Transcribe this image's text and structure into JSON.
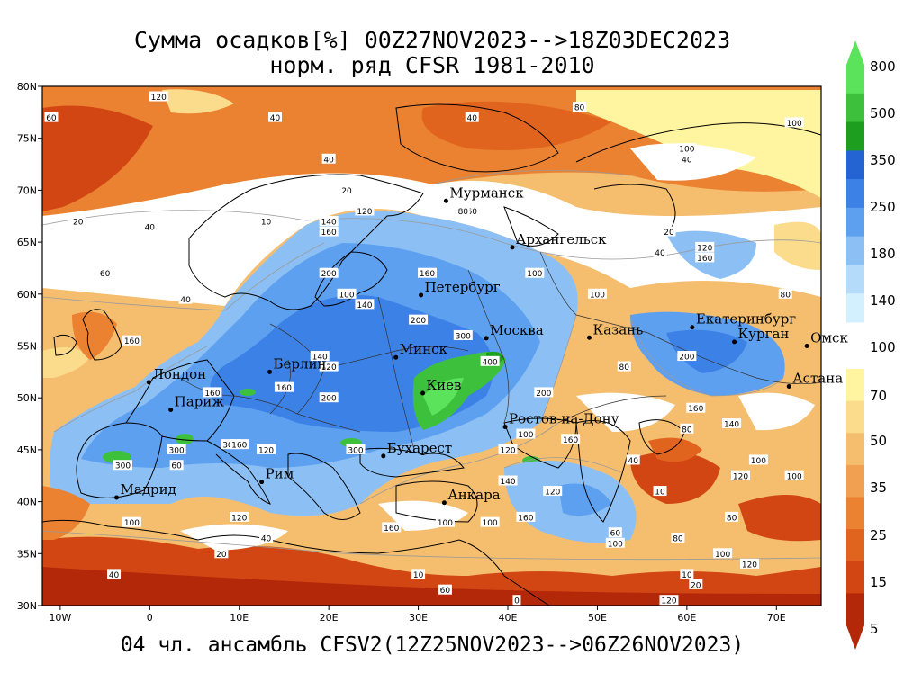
{
  "title": {
    "line1": "Сумма осадков[%] 00Z27NOV2023-->18Z03DEC2023",
    "line2": "норм. ряд CFSR 1981-2010"
  },
  "footer": "04 чл. ансамбль CFSV2(12Z25NOV2023-->06Z26NOV2023)",
  "axes": {
    "lat_labels": [
      "80N",
      "75N",
      "70N",
      "65N",
      "60N",
      "55N",
      "50N",
      "45N",
      "40N",
      "35N",
      "30N"
    ],
    "lon_labels": [
      "10W",
      "0",
      "10E",
      "20E",
      "30E",
      "40E",
      "50E",
      "60E",
      "70E"
    ],
    "lon_range": [
      -12,
      75
    ],
    "lat_range": [
      30,
      80
    ]
  },
  "colorbar": {
    "labels": [
      "800",
      "500",
      "350",
      "250",
      "180",
      "140",
      "100",
      "70",
      "50",
      "35",
      "25",
      "15",
      "5"
    ],
    "colors_upper": [
      "#5ce35c",
      "#3dc13d",
      "#1e9e1e",
      "#2364d2",
      "#3c82e6",
      "#5ea0f0",
      "#8cc0f5",
      "#b4dcfa",
      "#d2f0ff"
    ],
    "colors_lower": [
      "#fff5a0",
      "#fadc8c",
      "#f5be6e",
      "#f0a050",
      "#eb8232",
      "#e1641e",
      "#d24614",
      "#b4280a"
    ]
  },
  "cities": [
    {
      "name": "Мурманск",
      "lon": 33.1,
      "lat": 68.97
    },
    {
      "name": "Архангельск",
      "lon": 40.5,
      "lat": 64.5
    },
    {
      "name": "Петербург",
      "lon": 30.3,
      "lat": 59.9
    },
    {
      "name": "Москва",
      "lon": 37.6,
      "lat": 55.75
    },
    {
      "name": "Казань",
      "lon": 49.1,
      "lat": 55.8
    },
    {
      "name": "Екатеринбург",
      "lon": 60.6,
      "lat": 56.8
    },
    {
      "name": "Курган",
      "lon": 65.3,
      "lat": 55.4
    },
    {
      "name": "Омск",
      "lon": 73.4,
      "lat": 55.0
    },
    {
      "name": "Астана",
      "lon": 71.4,
      "lat": 51.1
    },
    {
      "name": "Минск",
      "lon": 27.5,
      "lat": 53.9
    },
    {
      "name": "Киев",
      "lon": 30.5,
      "lat": 50.45
    },
    {
      "name": "Берлин",
      "lon": 13.4,
      "lat": 52.5
    },
    {
      "name": "Лондон",
      "lon": -0.1,
      "lat": 51.5
    },
    {
      "name": "Париж",
      "lon": 2.35,
      "lat": 48.85
    },
    {
      "name": "Ростов-на-Дону",
      "lon": 39.7,
      "lat": 47.2
    },
    {
      "name": "Бухарест",
      "lon": 26.1,
      "lat": 44.4
    },
    {
      "name": "Рим",
      "lon": 12.5,
      "lat": 41.9
    },
    {
      "name": "Мадрид",
      "lon": -3.7,
      "lat": 40.4
    },
    {
      "name": "Анкара",
      "lon": 32.9,
      "lat": 39.9
    }
  ],
  "contour_labels": [
    {
      "t": "60",
      "lon": -11,
      "lat": 77
    },
    {
      "t": "120",
      "lon": 1,
      "lat": 79
    },
    {
      "t": "40",
      "lon": 14,
      "lat": 77
    },
    {
      "t": "40",
      "lon": 36,
      "lat": 77
    },
    {
      "t": "80",
      "lon": 48,
      "lat": 78
    },
    {
      "t": "100",
      "lon": 72,
      "lat": 76.5
    },
    {
      "t": "100",
      "lon": 60,
      "lat": 74
    },
    {
      "t": "40",
      "lon": 60,
      "lat": 73
    },
    {
      "t": "40",
      "lon": 20,
      "lat": 73
    },
    {
      "t": "20",
      "lon": 22,
      "lat": 70
    },
    {
      "t": "20",
      "lon": -8,
      "lat": 67
    },
    {
      "t": "40",
      "lon": 0,
      "lat": 66.5
    },
    {
      "t": "10",
      "lon": 13,
      "lat": 67
    },
    {
      "t": "140",
      "lon": 20,
      "lat": 67
    },
    {
      "t": "160",
      "lon": 20,
      "lat": 66
    },
    {
      "t": "120",
      "lon": 24,
      "lat": 68
    },
    {
      "t": "60",
      "lon": 36,
      "lat": 68
    },
    {
      "t": "80",
      "lon": 35,
      "lat": 68
    },
    {
      "t": "20",
      "lon": 58,
      "lat": 66
    },
    {
      "t": "40",
      "lon": 57,
      "lat": 64
    },
    {
      "t": "120",
      "lon": 62,
      "lat": 64.5
    },
    {
      "t": "160",
      "lon": 62,
      "lat": 63.5
    },
    {
      "t": "60",
      "lon": -5,
      "lat": 62
    },
    {
      "t": "200",
      "lon": 20,
      "lat": 62
    },
    {
      "t": "160",
      "lon": 31,
      "lat": 62
    },
    {
      "t": "100",
      "lon": 43,
      "lat": 62
    },
    {
      "t": "100",
      "lon": 50,
      "lat": 60
    },
    {
      "t": "80",
      "lon": 71,
      "lat": 60
    },
    {
      "t": "40",
      "lon": 4,
      "lat": 59.5
    },
    {
      "t": "100",
      "lon": 22,
      "lat": 60
    },
    {
      "t": "140",
      "lon": 24,
      "lat": 59
    },
    {
      "t": "200",
      "lon": 30,
      "lat": 57.5
    },
    {
      "t": "300",
      "lon": 35,
      "lat": 56
    },
    {
      "t": "160",
      "lon": -2,
      "lat": 55.5
    },
    {
      "t": "140",
      "lon": 19,
      "lat": 54
    },
    {
      "t": "120",
      "lon": 20,
      "lat": 53
    },
    {
      "t": "400",
      "lon": 38,
      "lat": 53.5
    },
    {
      "t": "80",
      "lon": 53,
      "lat": 53
    },
    {
      "t": "200",
      "lon": 60,
      "lat": 54
    },
    {
      "t": "160",
      "lon": 7,
      "lat": 50.5
    },
    {
      "t": "160",
      "lon": 15,
      "lat": 51
    },
    {
      "t": "200",
      "lon": 20,
      "lat": 50
    },
    {
      "t": "200",
      "lon": 44,
      "lat": 50.5
    },
    {
      "t": "160",
      "lon": 61,
      "lat": 49
    },
    {
      "t": "80",
      "lon": 60,
      "lat": 47
    },
    {
      "t": "140",
      "lon": 65,
      "lat": 47.5
    },
    {
      "t": "100",
      "lon": 42,
      "lat": 46.5
    },
    {
      "t": "160",
      "lon": 47,
      "lat": 46
    },
    {
      "t": "300",
      "lon": 3,
      "lat": 45
    },
    {
      "t": "300",
      "lon": 9,
      "lat": 45.5
    },
    {
      "t": "160",
      "lon": 10,
      "lat": 45.5
    },
    {
      "t": "120",
      "lon": 13,
      "lat": 45
    },
    {
      "t": "300",
      "lon": 23,
      "lat": 45
    },
    {
      "t": "120",
      "lon": 40,
      "lat": 45
    },
    {
      "t": "40",
      "lon": 54,
      "lat": 44
    },
    {
      "t": "100",
      "lon": 68,
      "lat": 44
    },
    {
      "t": "300",
      "lon": -3,
      "lat": 43.5
    },
    {
      "t": "60",
      "lon": 3,
      "lat": 43.5
    },
    {
      "t": "140",
      "lon": 40,
      "lat": 42
    },
    {
      "t": "120",
      "lon": 45,
      "lat": 41
    },
    {
      "t": "10",
      "lon": 57,
      "lat": 41
    },
    {
      "t": "120",
      "lon": 66,
      "lat": 42.5
    },
    {
      "t": "100",
      "lon": 72,
      "lat": 42.5
    },
    {
      "t": "120",
      "lon": 10,
      "lat": 38.5
    },
    {
      "t": "100",
      "lon": -2,
      "lat": 38
    },
    {
      "t": "160",
      "lon": 27,
      "lat": 37.5
    },
    {
      "t": "100",
      "lon": 33,
      "lat": 38
    },
    {
      "t": "100",
      "lon": 38,
      "lat": 38
    },
    {
      "t": "160",
      "lon": 42,
      "lat": 38.5
    },
    {
      "t": "80",
      "lon": 65,
      "lat": 38.5
    },
    {
      "t": "40",
      "lon": 13,
      "lat": 36.5
    },
    {
      "t": "60",
      "lon": 52,
      "lat": 37
    },
    {
      "t": "100",
      "lon": 52,
      "lat": 36
    },
    {
      "t": "80",
      "lon": 59,
      "lat": 36.5
    },
    {
      "t": "100",
      "lon": 64,
      "lat": 35
    },
    {
      "t": "120",
      "lon": 67,
      "lat": 34
    },
    {
      "t": "20",
      "lon": 8,
      "lat": 35
    },
    {
      "t": "10",
      "lon": 30,
      "lat": 33
    },
    {
      "t": "40",
      "lon": -4,
      "lat": 33
    },
    {
      "t": "20",
      "lon": 61,
      "lat": 32
    },
    {
      "t": "10",
      "lon": 60,
      "lat": 33
    },
    {
      "t": "60",
      "lon": 33,
      "lat": 31.5
    },
    {
      "t": "120",
      "lon": 58,
      "lat": 30.5
    },
    {
      "t": "0",
      "lon": 41,
      "lat": 30.5
    }
  ]
}
